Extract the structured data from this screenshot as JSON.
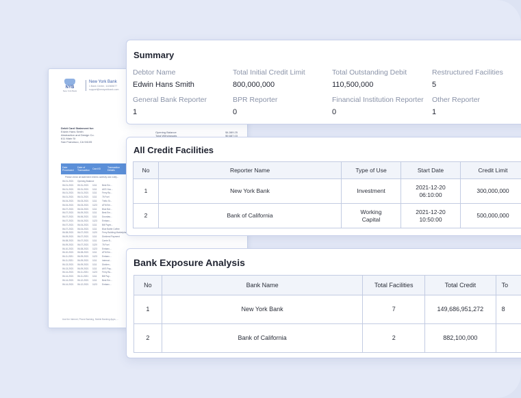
{
  "statement": {
    "logo_text": "NYB",
    "logo_sub": "New York Bank",
    "bank_name": "New York Bank",
    "bank_lines": [
      "1 Bank Center, 111565677",
      "support@newyorkbank.com"
    ],
    "for_heading": "Debit Card Statement for:",
    "for_lines": [
      "Edwin Hans Smith",
      "Abstraction and Design Co.",
      "611 Main St",
      "San Francisco, CA 94105"
    ],
    "balances": [
      {
        "label": "Opening Balance",
        "value": "$4,589.25"
      },
      {
        "label": "Total Withdrawals",
        "value": "$9,687.03"
      }
    ],
    "columns": [
      "Date Processed",
      "Date of Transaction",
      "Card ID",
      "Transaction Details"
    ],
    "note": "Please check all statement entries carefully and notify...",
    "rows": [
      [
        "06-01-2021",
        "Opening Balance",
        "",
        "",
        "",
        ""
      ],
      [
        "06-01-2021",
        "05-31-2021",
        "1111",
        "Best Em...",
        "",
        ""
      ],
      [
        "06-01-2021",
        "05-31-2021",
        "1111",
        "AKS Hou...",
        "",
        ""
      ],
      [
        "06-01-2021",
        "06-01-2021",
        "1111",
        "Ferry Bu...",
        "",
        ""
      ],
      [
        "06-01-2021",
        "06-01-2021",
        "1111",
        "76 Fuel",
        "",
        ""
      ],
      [
        "06-04-2021",
        "06-03-2021",
        "1111",
        "Trello St...",
        "",
        ""
      ],
      [
        "06-04-2021",
        "06-03-2021",
        "1123",
        "ATM Em...",
        "",
        ""
      ],
      [
        "06-07-2021",
        "06-04-2021",
        "1111",
        "Blue Bot...",
        "",
        ""
      ],
      [
        "06-07-2021",
        "06-09-2021",
        "1111",
        "Best Em...",
        "",
        ""
      ],
      [
        "06-07-2021",
        "06-06-2021",
        "1111",
        "Doordas...",
        "",
        ""
      ],
      [
        "06-07-2021",
        "06-04-2021",
        "1123",
        "Embarc...",
        "",
        ""
      ],
      [
        "06-07-2021",
        "06-04-2021",
        "1111",
        "Bill Paym...",
        "",
        ""
      ],
      [
        "06-07-2021",
        "06-04-2021",
        "1111",
        "Blue Bottle Coffee",
        "$11.80",
        "$4,575.35"
      ],
      [
        "06-08-2021",
        "06-07-2021",
        "1120",
        "Ferry Building Marketplace",
        "$80.42",
        "$4,180.53"
      ],
      [
        "06-09-2021",
        "06-07-2021",
        "1111",
        "Dividend Payment",
        "",
        ""
      ],
      [
        "06-08-2021",
        "06-07-2021",
        "1111",
        "Carrie B...",
        "",
        ""
      ],
      [
        "06-09-2021",
        "06-07-2021",
        "1120",
        "76 Fuel",
        "",
        ""
      ],
      [
        "06-10-2021",
        "06-08-2021",
        "1123",
        "Embarc...",
        "",
        ""
      ],
      [
        "06-10-2021",
        "06-08-2021",
        "1111",
        "ATM Em...",
        "",
        ""
      ],
      [
        "06-11-2021",
        "06-09-2021",
        "1123",
        "Embarc...",
        "",
        ""
      ],
      [
        "06-11-2021",
        "06-09-2021",
        "1111",
        "Internat...",
        "",
        ""
      ],
      [
        "06-13-2021",
        "06-09-2021",
        "1111",
        "Dividen...",
        "",
        ""
      ],
      [
        "06-13-2021",
        "06-09-2021",
        "1111",
        "AKS Pay...",
        "",
        ""
      ],
      [
        "06-14-2021",
        "06-11-2021",
        "1123",
        "Ferry Bu...",
        "",
        ""
      ],
      [
        "06-14-2021",
        "06-11-2021",
        "1111",
        "Bill Pay...",
        "",
        ""
      ],
      [
        "06-14-2021",
        "06-12-2021",
        "1111",
        "Best Em...",
        "",
        ""
      ],
      [
        "06-14-2021",
        "06-12-2021",
        "1123",
        "Embarc...",
        "",
        ""
      ]
    ],
    "footer": "Use the Internet, Phone Banking, Mobile Banking Apps, ..."
  },
  "summary": {
    "title": "Summary",
    "items": [
      {
        "label": "Debtor Name",
        "value": "Edwin Hans Smith"
      },
      {
        "label": "Total Initial Credit Limit",
        "value": "800,000,000"
      },
      {
        "label": "Total Outstanding Debit",
        "value": "110,500,000"
      },
      {
        "label": "Restructured Facilities",
        "value": "5"
      },
      {
        "label": "General Bank Reporter",
        "value": "1"
      },
      {
        "label": "BPR Reporter",
        "value": "0"
      },
      {
        "label": "Financial Institution Reporter",
        "value": "0"
      },
      {
        "label": "Other Reporter",
        "value": "1"
      }
    ]
  },
  "credit": {
    "title": "All Credit Facilities",
    "columns": [
      "No",
      "Reporter Name",
      "Type of Use",
      "Start Date",
      "Credit Limit"
    ],
    "rows": [
      {
        "no": "1",
        "reporter": "New York Bank",
        "type": "Investment",
        "date": "2021-12-20",
        "time": "06:10:00",
        "limit": "300,000,000"
      },
      {
        "no": "2",
        "reporter": "Bank of California",
        "type": "Working",
        "type2": "Capital",
        "date": "2021-12-20",
        "time": "10:50:00",
        "limit": "500,000,000"
      }
    ]
  },
  "exposure": {
    "title": "Bank Exposure Analysis",
    "columns": [
      "No",
      "Bank Name",
      "Total Facilities",
      "Total Credit",
      "To"
    ],
    "rows": [
      {
        "no": "1",
        "bank": "New York Bank",
        "facilities": "7",
        "credit": "149,686,951,272",
        "extra": "8"
      },
      {
        "no": "2",
        "bank": "Bank of California",
        "facilities": "2",
        "credit": "882,100,000",
        "extra": ""
      }
    ]
  }
}
